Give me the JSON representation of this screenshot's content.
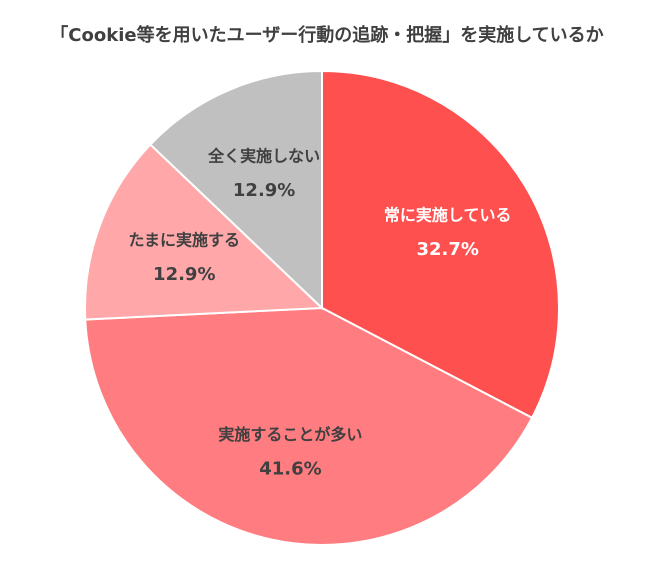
{
  "chart_data": {
    "type": "pie",
    "title": "「Cookie等を用いたユーザー行動の追跡・把握」を実施しているか",
    "categories": [
      "常に実施している",
      "実施することが多い",
      "たまに実施する",
      "全く実施しない"
    ],
    "values": [
      32.7,
      41.6,
      12.9,
      12.9
    ],
    "value_labels": [
      "32.7%",
      "41.6%",
      "12.9%",
      "12.9%"
    ],
    "colors": [
      "#ff5050",
      "#ff7c80",
      "#ffa7a9",
      "#c0c0c0"
    ]
  }
}
